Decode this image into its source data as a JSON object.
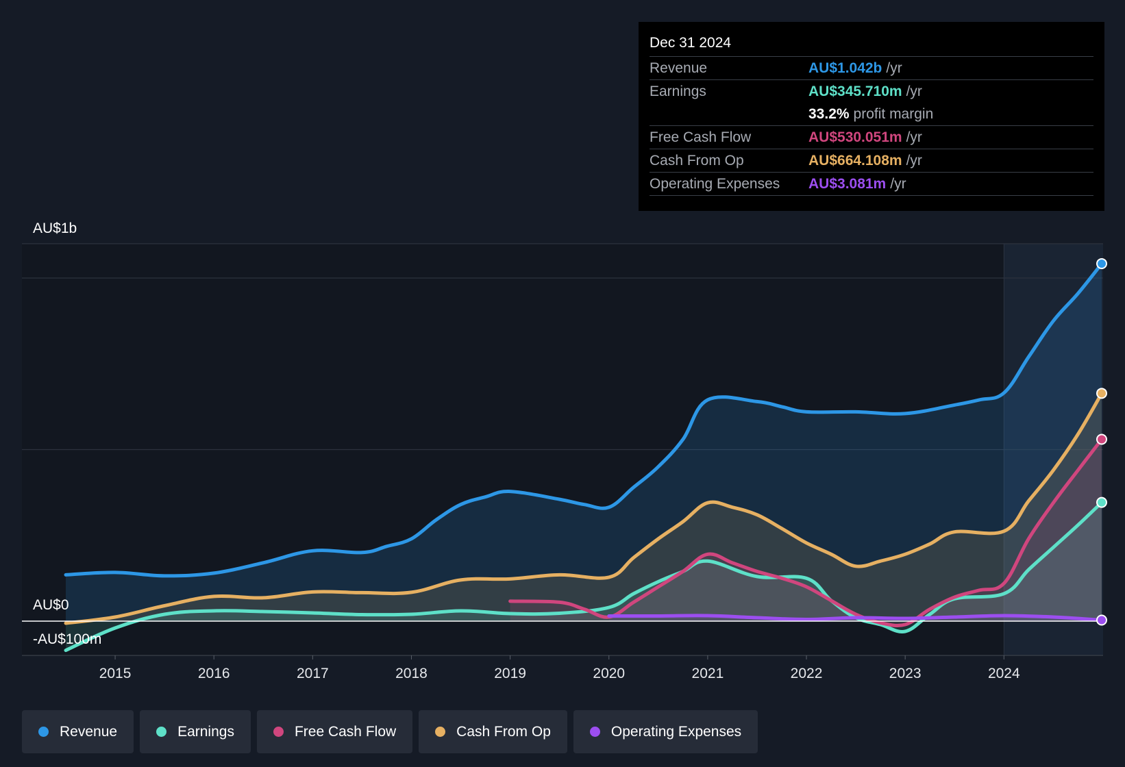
{
  "chart_data": {
    "type": "area",
    "currency": "AU$",
    "y_labels": {
      "top": "AU$1b",
      "zero": "AU$0",
      "bottom": "-AU$100m"
    },
    "ylim": [
      -100,
      1100
    ],
    "xlim": [
      2014.5,
      2024.99
    ],
    "highlight_start": 2024.0,
    "x_ticks": [
      2015,
      2016,
      2017,
      2018,
      2019,
      2020,
      2021,
      2022,
      2023,
      2024
    ],
    "series": [
      {
        "name": "Revenue",
        "color": "#2d97e6",
        "fill": "rgba(45,151,230,0.17)",
        "points": [
          [
            2014.5,
            135
          ],
          [
            2015,
            142
          ],
          [
            2015.5,
            132
          ],
          [
            2016,
            140
          ],
          [
            2016.5,
            170
          ],
          [
            2017,
            205
          ],
          [
            2017.5,
            200
          ],
          [
            2017.75,
            218
          ],
          [
            2018,
            240
          ],
          [
            2018.25,
            295
          ],
          [
            2018.5,
            340
          ],
          [
            2018.75,
            362
          ],
          [
            2019,
            378
          ],
          [
            2019.5,
            355
          ],
          [
            2019.75,
            340
          ],
          [
            2020,
            332
          ],
          [
            2020.25,
            390
          ],
          [
            2020.5,
            450
          ],
          [
            2020.75,
            530
          ],
          [
            2021,
            645
          ],
          [
            2021.5,
            640
          ],
          [
            2021.75,
            625
          ],
          [
            2022,
            610
          ],
          [
            2022.5,
            610
          ],
          [
            2023,
            605
          ],
          [
            2023.5,
            630
          ],
          [
            2023.75,
            645
          ],
          [
            2024,
            665
          ],
          [
            2024.25,
            770
          ],
          [
            2024.5,
            875
          ],
          [
            2024.75,
            955
          ],
          [
            2024.99,
            1042
          ]
        ]
      },
      {
        "name": "Cash From Op",
        "color": "#e6b062",
        "fill": "rgba(230,176,98,0.14)",
        "points": [
          [
            2014.5,
            -6
          ],
          [
            2015,
            12
          ],
          [
            2015.5,
            45
          ],
          [
            2016,
            72
          ],
          [
            2016.5,
            68
          ],
          [
            2017,
            85
          ],
          [
            2017.5,
            83
          ],
          [
            2018,
            84
          ],
          [
            2018.5,
            120
          ],
          [
            2019,
            123
          ],
          [
            2019.5,
            135
          ],
          [
            2020,
            128
          ],
          [
            2020.25,
            185
          ],
          [
            2020.5,
            240
          ],
          [
            2020.75,
            290
          ],
          [
            2021,
            345
          ],
          [
            2021.25,
            332
          ],
          [
            2021.5,
            310
          ],
          [
            2021.75,
            270
          ],
          [
            2022,
            228
          ],
          [
            2022.25,
            195
          ],
          [
            2022.5,
            160
          ],
          [
            2022.75,
            175
          ],
          [
            2023,
            195
          ],
          [
            2023.25,
            225
          ],
          [
            2023.5,
            260
          ],
          [
            2024,
            262
          ],
          [
            2024.25,
            350
          ],
          [
            2024.5,
            440
          ],
          [
            2024.75,
            545
          ],
          [
            2024.99,
            664
          ]
        ]
      },
      {
        "name": "Earnings",
        "color": "#5ee0c8",
        "fill": "rgba(94,224,200,0.14)",
        "points": [
          [
            2014.5,
            -85
          ],
          [
            2015,
            -20
          ],
          [
            2015.5,
            20
          ],
          [
            2016,
            30
          ],
          [
            2016.5,
            28
          ],
          [
            2017,
            24
          ],
          [
            2017.5,
            19
          ],
          [
            2018,
            20
          ],
          [
            2018.5,
            30
          ],
          [
            2019,
            22
          ],
          [
            2019.5,
            23
          ],
          [
            2020,
            40
          ],
          [
            2020.25,
            80
          ],
          [
            2020.5,
            115
          ],
          [
            2020.75,
            145
          ],
          [
            2021,
            175
          ],
          [
            2021.5,
            130
          ],
          [
            2022,
            125
          ],
          [
            2022.25,
            60
          ],
          [
            2022.5,
            10
          ],
          [
            2022.75,
            -10
          ],
          [
            2023,
            -30
          ],
          [
            2023.25,
            20
          ],
          [
            2023.5,
            65
          ],
          [
            2024,
            80
          ],
          [
            2024.25,
            150
          ],
          [
            2024.5,
            215
          ],
          [
            2024.75,
            280
          ],
          [
            2024.99,
            346
          ]
        ]
      },
      {
        "name": "Free Cash Flow",
        "color": "#d0467e",
        "fill": "rgba(208,70,126,0.14)",
        "points": [
          [
            2019,
            58
          ],
          [
            2019.5,
            55
          ],
          [
            2019.75,
            35
          ],
          [
            2020,
            12
          ],
          [
            2020.25,
            55
          ],
          [
            2020.5,
            100
          ],
          [
            2020.75,
            145
          ],
          [
            2021,
            195
          ],
          [
            2021.25,
            170
          ],
          [
            2021.5,
            145
          ],
          [
            2021.75,
            125
          ],
          [
            2022,
            100
          ],
          [
            2022.25,
            60
          ],
          [
            2022.5,
            20
          ],
          [
            2022.75,
            -5
          ],
          [
            2023,
            -10
          ],
          [
            2023.25,
            35
          ],
          [
            2023.5,
            70
          ],
          [
            2023.75,
            90
          ],
          [
            2024,
            110
          ],
          [
            2024.25,
            240
          ],
          [
            2024.5,
            345
          ],
          [
            2024.75,
            440
          ],
          [
            2024.99,
            530
          ]
        ]
      },
      {
        "name": "Operating Expenses",
        "color": "#9c4ef0",
        "fill": "rgba(156,78,240,0.10)",
        "points": [
          [
            2020,
            15
          ],
          [
            2020.5,
            15
          ],
          [
            2021,
            16
          ],
          [
            2021.5,
            10
          ],
          [
            2022,
            5
          ],
          [
            2022.5,
            10
          ],
          [
            2023,
            8
          ],
          [
            2023.5,
            12
          ],
          [
            2024,
            16
          ],
          [
            2024.5,
            12
          ],
          [
            2024.99,
            3
          ]
        ]
      }
    ]
  },
  "tooltip": {
    "date": "Dec 31 2024",
    "rows": [
      {
        "label": "Revenue",
        "value": "AU$1.042b",
        "unit": "/yr",
        "color": "#2d97e6"
      },
      {
        "label": "Earnings",
        "value": "AU$345.710m",
        "unit": "/yr",
        "color": "#5ee0c8"
      },
      {
        "label": "",
        "value": "33.2%",
        "unit": "profit margin",
        "color": "#ffffff"
      },
      {
        "label": "Free Cash Flow",
        "value": "AU$530.051m",
        "unit": "/yr",
        "color": "#d0467e"
      },
      {
        "label": "Cash From Op",
        "value": "AU$664.108m",
        "unit": "/yr",
        "color": "#e6b062"
      },
      {
        "label": "Operating Expenses",
        "value": "AU$3.081m",
        "unit": "/yr",
        "color": "#9c4ef0"
      }
    ]
  },
  "legend": [
    {
      "label": "Revenue",
      "color": "#2d97e6"
    },
    {
      "label": "Earnings",
      "color": "#5ee0c8"
    },
    {
      "label": "Free Cash Flow",
      "color": "#d0467e"
    },
    {
      "label": "Cash From Op",
      "color": "#e6b062"
    },
    {
      "label": "Operating Expenses",
      "color": "#9c4ef0"
    }
  ]
}
